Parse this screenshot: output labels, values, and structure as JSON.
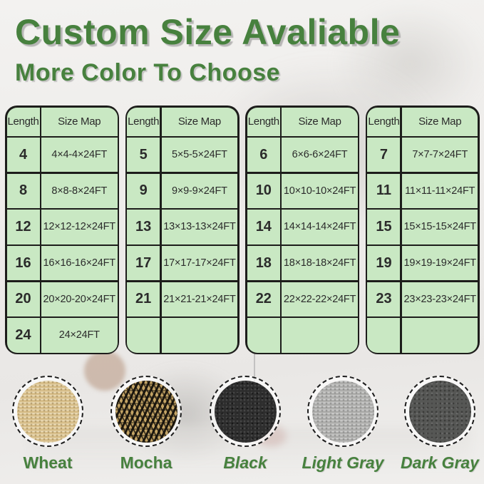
{
  "title": "Custom Size Avaliable",
  "subtitle": "More Color To Choose",
  "colors": {
    "accent_green": "#47813e",
    "table_fill": "#c9e8c3",
    "table_border": "#1d1d1b",
    "table_text": "#2b2b2b"
  },
  "tables": [
    {
      "headers": [
        "Length",
        "Size Map"
      ],
      "rows": [
        [
          "4",
          "4×4-4×24FT"
        ],
        [
          "8",
          "8×8-8×24FT"
        ],
        [
          "12",
          "12×12-12×24FT"
        ],
        [
          "16",
          "16×16-16×24FT"
        ],
        [
          "20",
          "20×20-20×24FT"
        ],
        [
          "24",
          "24×24FT"
        ]
      ]
    },
    {
      "headers": [
        "Length",
        "Size Map"
      ],
      "rows": [
        [
          "5",
          "5×5-5×24FT"
        ],
        [
          "9",
          "9×9-9×24FT"
        ],
        [
          "13",
          "13×13-13×24FT"
        ],
        [
          "17",
          "17×17-17×24FT"
        ],
        [
          "21",
          "21×21-21×24FT"
        ],
        [
          "",
          ""
        ]
      ]
    },
    {
      "headers": [
        "Length",
        "Size Map"
      ],
      "rows": [
        [
          "6",
          "6×6-6×24FT"
        ],
        [
          "10",
          "10×10-10×24FT"
        ],
        [
          "14",
          "14×14-14×24FT"
        ],
        [
          "18",
          "18×18-18×24FT"
        ],
        [
          "22",
          "22×22-22×24FT"
        ],
        [
          "",
          ""
        ]
      ]
    },
    {
      "headers": [
        "Length",
        "Size Map"
      ],
      "rows": [
        [
          "7",
          "7×7-7×24FT"
        ],
        [
          "11",
          "11×11-11×24FT"
        ],
        [
          "15",
          "15×15-15×24FT"
        ],
        [
          "19",
          "19×19-19×24FT"
        ],
        [
          "23",
          "23×23-23×24FT"
        ],
        [
          "",
          ""
        ]
      ]
    }
  ],
  "swatches": [
    {
      "name": "Wheat",
      "italic": false,
      "base_color": "#d8bf8b"
    },
    {
      "name": "Mocha",
      "italic": false,
      "base_color": "#6b5a35"
    },
    {
      "name": "Black",
      "italic": true,
      "base_color": "#2d2d2d"
    },
    {
      "name": "Light Gray",
      "italic": true,
      "base_color": "#aeaeac"
    },
    {
      "name": "Dark Gray",
      "italic": true,
      "base_color": "#565755"
    }
  ]
}
